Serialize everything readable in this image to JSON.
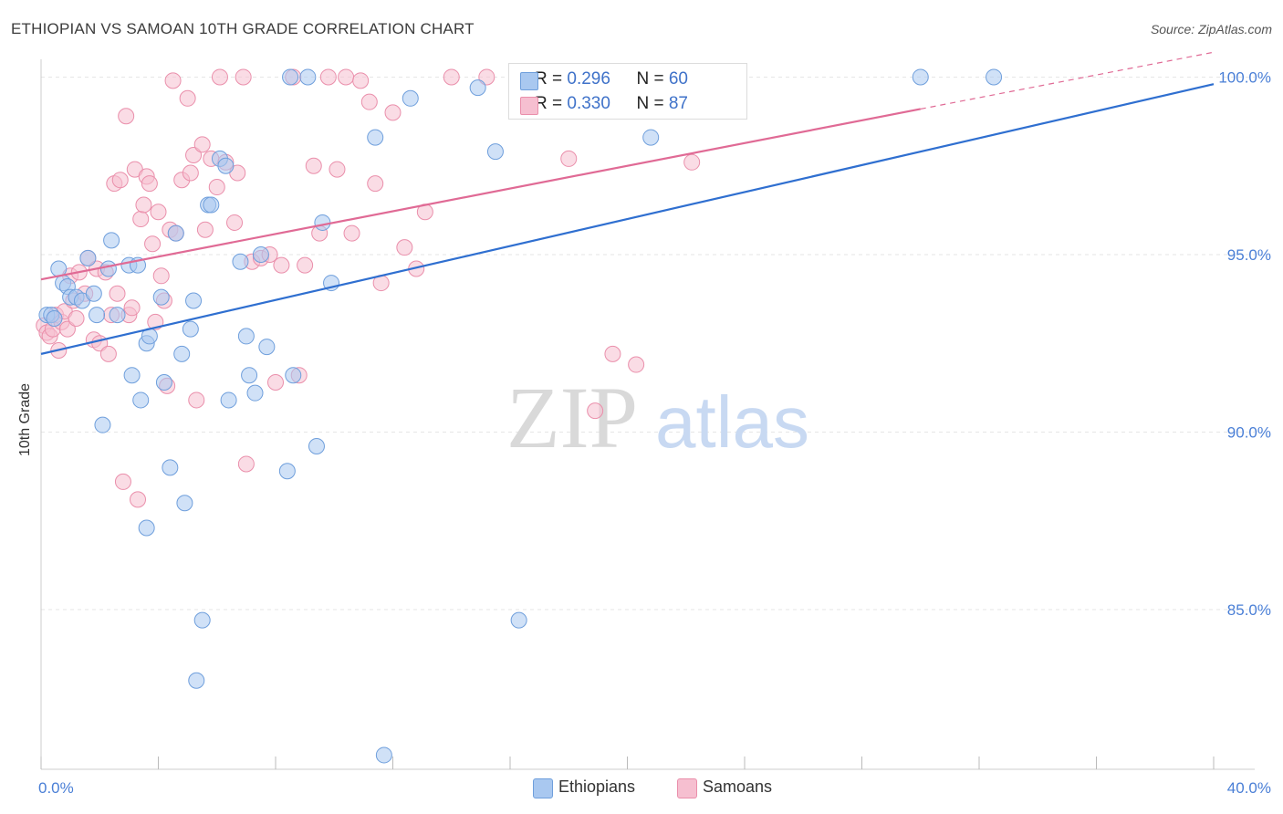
{
  "title": "ETHIOPIAN VS SAMOAN 10TH GRADE CORRELATION CHART",
  "source": "Source: ZipAtlas.com",
  "watermark": {
    "zip": "ZIP",
    "atlas": "atlas"
  },
  "legend": {
    "rows": [
      {
        "r_label": "R = ",
        "r_value": "0.296",
        "n_label": "N = ",
        "n_value": "60"
      },
      {
        "r_label": "R = ",
        "r_value": "0.330",
        "n_label": "N = ",
        "n_value": "87"
      }
    ]
  },
  "bottom_legend": {
    "items": [
      "Ethiopians",
      "Samoans"
    ]
  },
  "colors": {
    "blue_fill": "#a9c8f0",
    "blue_stroke": "#6f9fdc",
    "blue_line": "#2f6fd0",
    "pink_fill": "#f6bfd0",
    "pink_stroke": "#ea8fab",
    "pink_line": "#e06a95",
    "axis_label": "#4a7fd6",
    "grid": "#e6e6e6"
  },
  "chart_data": {
    "type": "scatter",
    "title": "ETHIOPIAN VS SAMOAN 10TH GRADE CORRELATION CHART",
    "xlabel": "",
    "ylabel": "10th Grade",
    "xlim": [
      0,
      40
    ],
    "ylim": [
      80.5,
      100.5
    ],
    "x_tick_labels": [
      "0.0%",
      "40.0%"
    ],
    "y_ticks": [
      85,
      90,
      95,
      100
    ],
    "y_tick_labels": [
      "85.0%",
      "90.0%",
      "95.0%",
      "100.0%"
    ],
    "grid": true,
    "legend_position": "top-center",
    "series": [
      {
        "name": "Ethiopians",
        "r": 0.296,
        "n": 60,
        "trend": [
          [
            0,
            92.2
          ],
          [
            40,
            99.8
          ]
        ],
        "points": [
          [
            0.2,
            93.3
          ],
          [
            0.35,
            93.3
          ],
          [
            0.45,
            93.2
          ],
          [
            0.6,
            94.6
          ],
          [
            0.75,
            94.2
          ],
          [
            0.9,
            94.1
          ],
          [
            1.0,
            93.8
          ],
          [
            1.2,
            93.8
          ],
          [
            1.4,
            93.7
          ],
          [
            1.6,
            94.9
          ],
          [
            1.8,
            93.9
          ],
          [
            1.9,
            93.3
          ],
          [
            2.3,
            94.6
          ],
          [
            2.4,
            95.4
          ],
          [
            2.6,
            93.3
          ],
          [
            3.0,
            94.7
          ],
          [
            3.1,
            91.6
          ],
          [
            3.3,
            94.7
          ],
          [
            3.4,
            90.9
          ],
          [
            3.6,
            92.5
          ],
          [
            3.7,
            92.7
          ],
          [
            4.1,
            93.8
          ],
          [
            4.2,
            91.4
          ],
          [
            4.4,
            89.0
          ],
          [
            4.6,
            95.6
          ],
          [
            4.8,
            92.2
          ],
          [
            4.9,
            88.0
          ],
          [
            5.1,
            92.9
          ],
          [
            5.2,
            93.7
          ],
          [
            5.3,
            83.0
          ],
          [
            5.5,
            84.7
          ],
          [
            5.7,
            96.4
          ],
          [
            5.8,
            96.4
          ],
          [
            6.1,
            97.7
          ],
          [
            6.3,
            97.5
          ],
          [
            6.4,
            90.9
          ],
          [
            6.8,
            94.8
          ],
          [
            7.0,
            92.7
          ],
          [
            7.1,
            91.6
          ],
          [
            7.3,
            91.1
          ],
          [
            7.5,
            95.0
          ],
          [
            7.7,
            92.4
          ],
          [
            8.4,
            88.9
          ],
          [
            8.6,
            91.6
          ],
          [
            9.1,
            100.0
          ],
          [
            9.4,
            89.6
          ],
          [
            9.6,
            95.9
          ],
          [
            9.9,
            94.2
          ],
          [
            11.4,
            98.3
          ],
          [
            11.7,
            80.9
          ],
          [
            12.6,
            99.4
          ],
          [
            14.9,
            99.7
          ],
          [
            15.5,
            97.9
          ],
          [
            16.3,
            84.7
          ],
          [
            20.8,
            98.3
          ],
          [
            3.6,
            87.3
          ],
          [
            2.1,
            90.2
          ],
          [
            30.0,
            100.0
          ],
          [
            32.5,
            100.0
          ],
          [
            8.5,
            100.0
          ]
        ]
      },
      {
        "name": "Samoans",
        "r": 0.33,
        "n": 87,
        "trend": [
          [
            0,
            94.3
          ],
          [
            30,
            99.1
          ]
        ],
        "trend_dashed": [
          [
            30,
            99.1
          ],
          [
            40,
            100.7
          ]
        ],
        "points": [
          [
            0.1,
            93.0
          ],
          [
            0.2,
            92.8
          ],
          [
            0.3,
            92.7
          ],
          [
            0.4,
            92.9
          ],
          [
            0.5,
            93.3
          ],
          [
            0.6,
            92.3
          ],
          [
            0.7,
            93.1
          ],
          [
            0.8,
            93.4
          ],
          [
            0.9,
            92.9
          ],
          [
            1.0,
            94.4
          ],
          [
            1.1,
            93.7
          ],
          [
            1.2,
            93.2
          ],
          [
            1.3,
            94.5
          ],
          [
            1.5,
            93.9
          ],
          [
            1.6,
            94.9
          ],
          [
            1.8,
            92.6
          ],
          [
            1.9,
            94.6
          ],
          [
            2.0,
            92.5
          ],
          [
            2.2,
            94.5
          ],
          [
            2.3,
            92.2
          ],
          [
            2.4,
            93.3
          ],
          [
            2.5,
            97.0
          ],
          [
            2.6,
            93.9
          ],
          [
            2.7,
            97.1
          ],
          [
            2.8,
            88.6
          ],
          [
            2.9,
            98.9
          ],
          [
            3.0,
            93.3
          ],
          [
            3.1,
            93.5
          ],
          [
            3.2,
            97.4
          ],
          [
            3.3,
            88.1
          ],
          [
            3.4,
            96.0
          ],
          [
            3.5,
            96.4
          ],
          [
            3.6,
            97.2
          ],
          [
            3.7,
            97.0
          ],
          [
            3.8,
            95.3
          ],
          [
            3.9,
            93.1
          ],
          [
            4.0,
            96.2
          ],
          [
            4.1,
            94.4
          ],
          [
            4.2,
            93.7
          ],
          [
            4.3,
            91.3
          ],
          [
            4.4,
            95.7
          ],
          [
            4.5,
            99.9
          ],
          [
            4.6,
            95.6
          ],
          [
            4.8,
            97.1
          ],
          [
            5.0,
            99.4
          ],
          [
            5.1,
            97.3
          ],
          [
            5.2,
            97.8
          ],
          [
            5.3,
            90.9
          ],
          [
            5.5,
            98.1
          ],
          [
            5.6,
            95.7
          ],
          [
            5.8,
            97.7
          ],
          [
            6.0,
            96.9
          ],
          [
            6.1,
            100.0
          ],
          [
            6.3,
            97.6
          ],
          [
            6.6,
            95.9
          ],
          [
            6.7,
            97.3
          ],
          [
            6.9,
            100.0
          ],
          [
            7.0,
            89.1
          ],
          [
            7.2,
            94.8
          ],
          [
            7.5,
            94.9
          ],
          [
            7.8,
            95.0
          ],
          [
            8.0,
            91.4
          ],
          [
            8.2,
            94.7
          ],
          [
            8.6,
            100.0
          ],
          [
            8.8,
            91.6
          ],
          [
            9.0,
            94.7
          ],
          [
            9.3,
            97.5
          ],
          [
            9.5,
            95.6
          ],
          [
            9.8,
            100.0
          ],
          [
            10.1,
            97.4
          ],
          [
            10.4,
            100.0
          ],
          [
            10.6,
            95.6
          ],
          [
            10.9,
            99.9
          ],
          [
            11.2,
            99.3
          ],
          [
            11.4,
            97.0
          ],
          [
            11.6,
            94.2
          ],
          [
            12.0,
            99.0
          ],
          [
            12.4,
            95.2
          ],
          [
            12.8,
            94.6
          ],
          [
            13.1,
            96.2
          ],
          [
            14.0,
            100.0
          ],
          [
            15.2,
            100.0
          ],
          [
            18.0,
            97.7
          ],
          [
            18.9,
            90.6
          ],
          [
            19.5,
            92.2
          ],
          [
            20.3,
            91.9
          ],
          [
            22.2,
            97.6
          ]
        ]
      }
    ]
  }
}
